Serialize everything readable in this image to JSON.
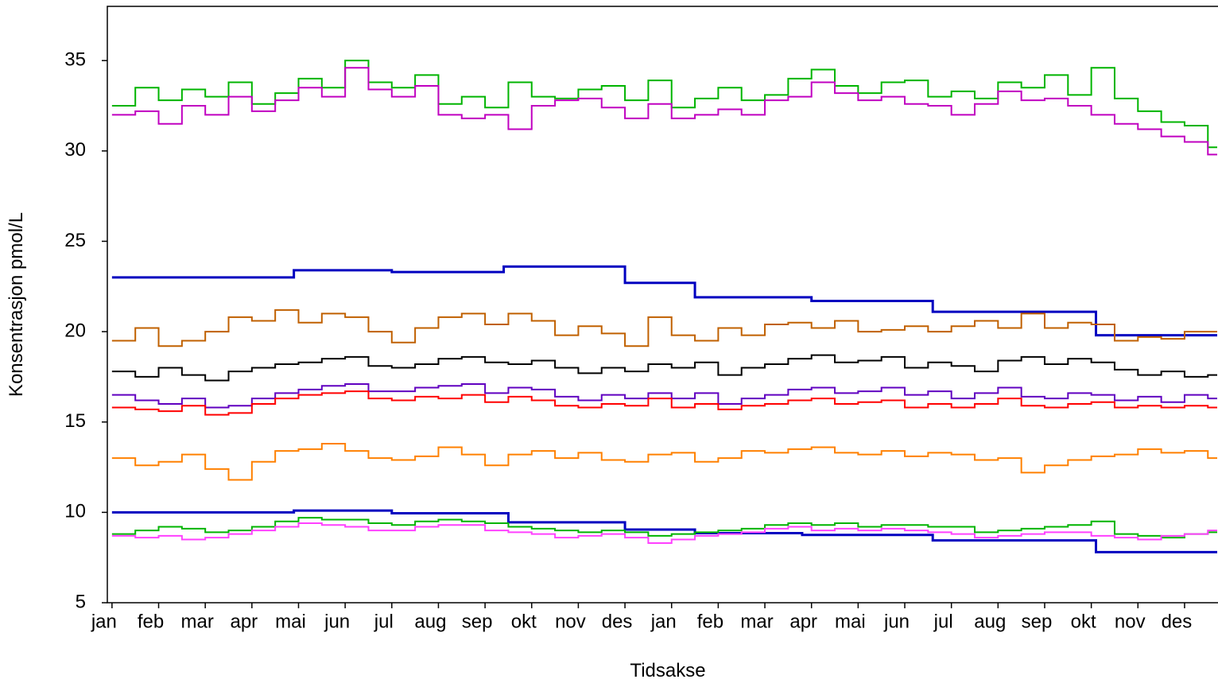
{
  "chart_data": {
    "type": "line",
    "line_style": "step",
    "x_label": "Tidsakse",
    "y_label": "Konsentrasjon pmol/L",
    "xlim": [
      -0.1,
      23.7
    ],
    "ylim": [
      5,
      38
    ],
    "yticks": [
      5,
      10,
      15,
      20,
      25,
      30,
      35
    ],
    "xticks": [
      {
        "value": 0,
        "label": "jan"
      },
      {
        "value": 1,
        "label": "feb"
      },
      {
        "value": 2,
        "label": "mar"
      },
      {
        "value": 3,
        "label": "apr"
      },
      {
        "value": 4,
        "label": "mai"
      },
      {
        "value": 5,
        "label": "jun"
      },
      {
        "value": 6,
        "label": "jul"
      },
      {
        "value": 7,
        "label": "aug"
      },
      {
        "value": 8,
        "label": "sep"
      },
      {
        "value": 9,
        "label": "okt"
      },
      {
        "value": 10,
        "label": "nov"
      },
      {
        "value": 11,
        "label": "des"
      },
      {
        "value": 12,
        "label": "jan"
      },
      {
        "value": 13,
        "label": "feb"
      },
      {
        "value": 14,
        "label": "mar"
      },
      {
        "value": 15,
        "label": "apr"
      },
      {
        "value": 16,
        "label": "mai"
      },
      {
        "value": 17,
        "label": "jun"
      },
      {
        "value": 18,
        "label": "jul"
      },
      {
        "value": 19,
        "label": "aug"
      },
      {
        "value": 20,
        "label": "sep"
      },
      {
        "value": 21,
        "label": "okt"
      },
      {
        "value": 22,
        "label": "nov"
      },
      {
        "value": 23,
        "label": "des"
      }
    ],
    "x": [
      0,
      0.5,
      1,
      1.5,
      2,
      2.5,
      3,
      3.5,
      4,
      4.5,
      5,
      5.5,
      6,
      6.5,
      7,
      7.5,
      8,
      8.5,
      9,
      9.5,
      10,
      10.5,
      11,
      11.5,
      12,
      12.5,
      13,
      13.5,
      14,
      14.5,
      15,
      15.5,
      16,
      16.5,
      17,
      17.5,
      18,
      18.5,
      19,
      19.5,
      20,
      20.5,
      21,
      21.5,
      22,
      22.5,
      23,
      23.5
    ],
    "series": [
      {
        "color": "#00b400",
        "values": [
          32.5,
          33.5,
          32.8,
          33.4,
          33.0,
          33.8,
          32.6,
          33.2,
          34.0,
          33.5,
          35.0,
          33.8,
          33.5,
          34.2,
          32.6,
          33.0,
          32.4,
          33.8,
          33.0,
          32.9,
          33.4,
          33.6,
          32.8,
          33.9,
          32.4,
          32.9,
          33.5,
          32.8,
          33.1,
          34.0,
          34.5,
          33.6,
          33.2,
          33.8,
          33.9,
          33.0,
          33.3,
          32.9,
          33.8,
          33.5,
          34.2,
          33.1,
          34.6,
          32.9,
          32.2,
          31.6,
          31.4,
          30.2
        ]
      },
      {
        "color": "#c000c0",
        "values": [
          32.0,
          32.2,
          31.5,
          32.5,
          32.0,
          33.0,
          32.2,
          32.8,
          33.5,
          33.0,
          34.6,
          33.4,
          33.0,
          33.6,
          32.0,
          31.8,
          32.0,
          31.2,
          32.5,
          32.8,
          32.9,
          32.4,
          31.8,
          32.6,
          31.8,
          32.0,
          32.3,
          32.0,
          32.8,
          33.0,
          33.8,
          33.2,
          32.8,
          33.0,
          32.6,
          32.5,
          32.0,
          32.6,
          33.3,
          32.8,
          32.9,
          32.5,
          32.0,
          31.5,
          31.2,
          30.8,
          30.5,
          29.8
        ]
      },
      {
        "color": "#0000c0",
        "x": [
          0,
          3.9,
          6.0,
          8.4,
          11.0,
          12.5,
          15.0,
          17.6,
          21.1
        ],
        "values": [
          23.0,
          23.4,
          23.3,
          23.6,
          22.7,
          21.9,
          21.7,
          21.1,
          19.8
        ]
      },
      {
        "color": "#c06000",
        "values": [
          19.5,
          20.2,
          19.2,
          19.5,
          20.0,
          20.8,
          20.6,
          21.2,
          20.5,
          21.0,
          20.8,
          20.0,
          19.4,
          20.2,
          20.8,
          21.0,
          20.4,
          21.0,
          20.6,
          19.8,
          20.3,
          19.9,
          19.2,
          20.8,
          19.8,
          19.5,
          20.2,
          19.8,
          20.4,
          20.5,
          20.2,
          20.6,
          20.0,
          20.1,
          20.3,
          20.0,
          20.3,
          20.6,
          20.2,
          21.0,
          20.2,
          20.5,
          20.4,
          19.5,
          19.7,
          19.6,
          20.0,
          20.0
        ]
      },
      {
        "color": "#000000",
        "values": [
          17.8,
          17.5,
          18.0,
          17.6,
          17.3,
          17.8,
          18.0,
          18.2,
          18.3,
          18.5,
          18.6,
          18.1,
          18.0,
          18.2,
          18.5,
          18.6,
          18.3,
          18.2,
          18.4,
          18.0,
          17.7,
          18.0,
          17.8,
          18.2,
          18.0,
          18.3,
          17.6,
          18.0,
          18.2,
          18.5,
          18.7,
          18.3,
          18.4,
          18.6,
          18.0,
          18.3,
          18.1,
          17.8,
          18.4,
          18.6,
          18.2,
          18.5,
          18.3,
          17.9,
          17.6,
          17.8,
          17.5,
          17.6
        ]
      },
      {
        "color": "#6000c0",
        "values": [
          16.5,
          16.2,
          16.0,
          16.3,
          15.8,
          15.9,
          16.3,
          16.6,
          16.8,
          17.0,
          17.1,
          16.7,
          16.7,
          16.9,
          17.0,
          17.1,
          16.6,
          16.9,
          16.8,
          16.4,
          16.2,
          16.5,
          16.3,
          16.6,
          16.3,
          16.6,
          16.0,
          16.3,
          16.5,
          16.8,
          16.9,
          16.6,
          16.7,
          16.9,
          16.5,
          16.7,
          16.3,
          16.6,
          16.9,
          16.4,
          16.3,
          16.6,
          16.5,
          16.2,
          16.4,
          16.1,
          16.5,
          16.3
        ]
      },
      {
        "color": "#ff0000",
        "values": [
          15.8,
          15.7,
          15.6,
          15.9,
          15.4,
          15.5,
          16.0,
          16.3,
          16.5,
          16.6,
          16.7,
          16.3,
          16.2,
          16.4,
          16.3,
          16.5,
          16.1,
          16.4,
          16.2,
          15.9,
          15.8,
          16.0,
          15.9,
          16.3,
          15.8,
          16.0,
          15.7,
          15.9,
          16.0,
          16.2,
          16.3,
          16.0,
          16.1,
          16.2,
          15.8,
          16.0,
          15.8,
          16.0,
          16.3,
          15.9,
          15.8,
          16.0,
          16.1,
          15.8,
          15.9,
          15.8,
          15.9,
          15.8
        ]
      },
      {
        "color": "#ff8000",
        "values": [
          13.0,
          12.6,
          12.8,
          13.2,
          12.4,
          11.8,
          12.8,
          13.4,
          13.5,
          13.8,
          13.4,
          13.0,
          12.9,
          13.1,
          13.6,
          13.2,
          12.6,
          13.2,
          13.4,
          13.0,
          13.3,
          12.9,
          12.8,
          13.2,
          13.3,
          12.8,
          13.0,
          13.4,
          13.3,
          13.5,
          13.6,
          13.3,
          13.2,
          13.4,
          13.1,
          13.3,
          13.2,
          12.9,
          13.0,
          12.2,
          12.6,
          12.9,
          13.1,
          13.2,
          13.5,
          13.3,
          13.4,
          13.0
        ]
      },
      {
        "color": "#0000c0",
        "x": [
          0,
          3.9,
          6.0,
          8.5,
          11.0,
          12.5,
          14.8,
          17.6,
          21.1
        ],
        "values": [
          10.0,
          10.1,
          9.95,
          9.45,
          9.05,
          8.85,
          8.75,
          8.45,
          7.8
        ]
      },
      {
        "color": "#00b400",
        "values": [
          8.8,
          9.0,
          9.2,
          9.1,
          8.9,
          9.0,
          9.2,
          9.5,
          9.7,
          9.6,
          9.6,
          9.4,
          9.3,
          9.5,
          9.6,
          9.5,
          9.4,
          9.2,
          9.1,
          9.0,
          8.9,
          9.0,
          8.9,
          8.7,
          8.8,
          8.9,
          9.0,
          9.1,
          9.3,
          9.4,
          9.3,
          9.4,
          9.2,
          9.3,
          9.3,
          9.2,
          9.2,
          8.9,
          9.0,
          9.1,
          9.2,
          9.3,
          9.5,
          8.8,
          8.7,
          8.6,
          8.8,
          8.9
        ]
      },
      {
        "color": "#ff40ff",
        "values": [
          8.7,
          8.6,
          8.7,
          8.5,
          8.6,
          8.8,
          9.0,
          9.2,
          9.4,
          9.3,
          9.2,
          9.0,
          9.0,
          9.2,
          9.3,
          9.3,
          9.0,
          8.9,
          8.8,
          8.6,
          8.7,
          8.8,
          8.6,
          8.3,
          8.5,
          8.7,
          8.8,
          8.9,
          9.1,
          9.2,
          9.0,
          9.1,
          9.0,
          9.1,
          9.0,
          8.9,
          8.8,
          8.6,
          8.7,
          8.8,
          8.9,
          8.9,
          8.7,
          8.6,
          8.5,
          8.7,
          8.8,
          9.0
        ]
      }
    ]
  }
}
